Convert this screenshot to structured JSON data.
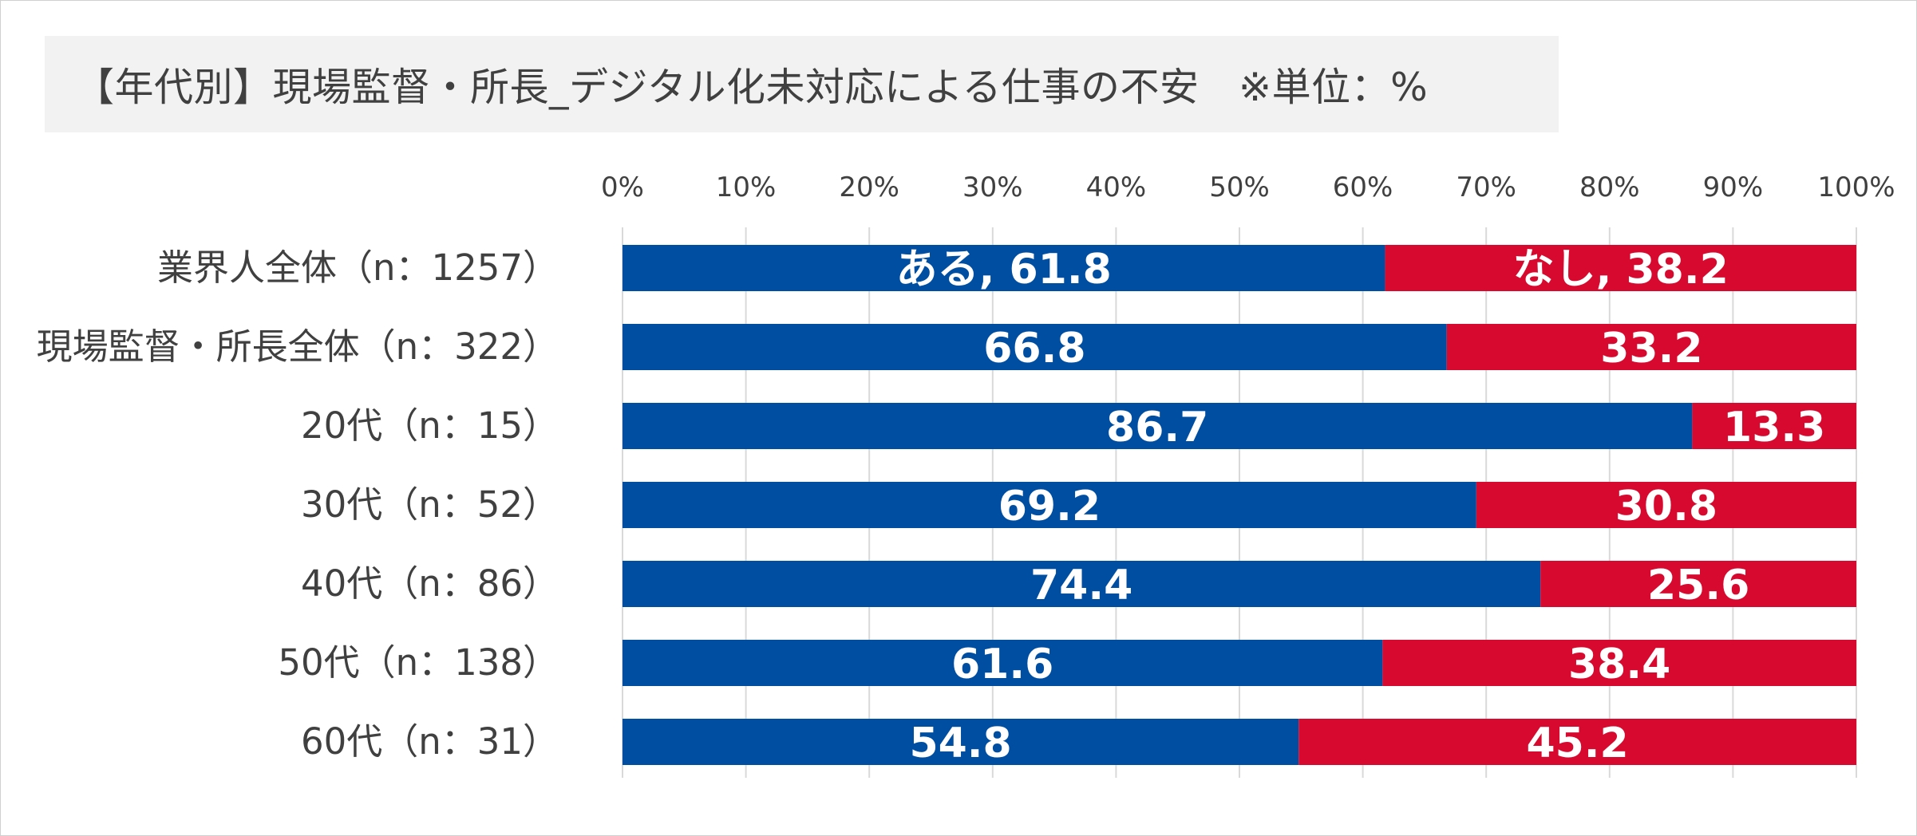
{
  "title": "【年代別】現場監督・所長_デジタル化未対応による仕事の不安　※単位：%",
  "colors": {
    "ari": "#004ea2",
    "nashi": "#d7092f",
    "grid": "#d9d9d9",
    "tick_text": "#404040",
    "label_text": "#404040",
    "title_bg": "#f2f2f2",
    "bar_label": "#ffffff"
  },
  "chart_data": {
    "type": "bar",
    "orientation": "horizontal",
    "stacked": "percent",
    "title": "【年代別】現場監督・所長_デジタル化未対応による仕事の不安　※単位：%",
    "categories": [
      "業界人全体（n：1257）",
      "現場監督・所長全体（n：322）",
      "20代（n：15）",
      "30代（n：52）",
      "40代（n：86）",
      "50代（n：138）",
      "60代（n：31）"
    ],
    "series": [
      {
        "name": "ある",
        "values": [
          61.8,
          66.8,
          86.7,
          69.2,
          74.4,
          61.6,
          54.8
        ]
      },
      {
        "name": "なし",
        "values": [
          38.2,
          33.2,
          13.3,
          30.8,
          25.6,
          38.4,
          45.2
        ]
      }
    ],
    "data_labels": {
      "ある": [
        "ある, 61.8",
        "66.8",
        "86.7",
        "69.2",
        "74.4",
        "61.6",
        "54.8"
      ],
      "なし": [
        "なし, 38.2",
        "33.2",
        "13.3",
        "30.8",
        "25.6",
        "38.4",
        "45.2"
      ]
    },
    "xlim": [
      0,
      100
    ],
    "xticks": [
      "0%",
      "10%",
      "20%",
      "30%",
      "40%",
      "50%",
      "60%",
      "70%",
      "80%",
      "90%",
      "100%"
    ],
    "x_axis_position": "top",
    "grid": true,
    "legend": "none"
  }
}
